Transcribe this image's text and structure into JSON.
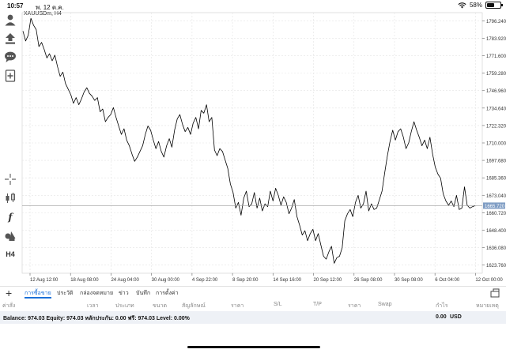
{
  "status": {
    "time": "10:57",
    "date": "พ. 12 ต.ค.",
    "battery_label": "58%",
    "battery_level": 0.58
  },
  "chart": {
    "symbol": "XAUUSDm, H4",
    "current_price": "1665.720",
    "price_ticks": [
      "1796.240",
      "1783.920",
      "1771.600",
      "1759.280",
      "1746.960",
      "1734.640",
      "1722.320",
      "1710.000",
      "1697.680",
      "1685.360",
      "1673.040",
      "1660.720",
      "1648.400",
      "1636.080",
      "1623.760"
    ],
    "date_ticks": [
      "12 Aug 12:00",
      "18 Aug 08:00",
      "24 Aug 04:00",
      "30 Aug 00:00",
      "4 Sep 22:00",
      "8 Sep 20:00",
      "14 Sep 16:00",
      "20 Sep 12:00",
      "26 Sep 08:00",
      "30 Sep 08:00",
      "6 Oct 04:00",
      "12 Oct 00:00"
    ]
  },
  "chart_data": {
    "type": "line",
    "x_ticks": [
      "12 Aug 12:00",
      "18 Aug 08:00",
      "24 Aug 04:00",
      "30 Aug 00:00",
      "4 Sep 22:00",
      "8 Sep 20:00",
      "14 Sep 16:00",
      "20 Sep 12:00",
      "26 Sep 08:00",
      "30 Sep 08:00",
      "6 Oct 04:00",
      "12 Oct 00:00"
    ],
    "ylim": [
      1618,
      1802
    ],
    "last_price": 1665.72,
    "grid": true,
    "series": [
      {
        "values": [
          1789,
          1782,
          1786,
          1798,
          1793,
          1790,
          1778,
          1781,
          1776,
          1770,
          1773,
          1768,
          1772,
          1764,
          1757,
          1760,
          1752,
          1748,
          1744,
          1738,
          1742,
          1737,
          1741,
          1746,
          1749,
          1745,
          1743,
          1740,
          1742,
          1732,
          1734,
          1725,
          1728,
          1730,
          1735,
          1728,
          1722,
          1716,
          1720,
          1712,
          1708,
          1702,
          1697,
          1700,
          1704,
          1708,
          1716,
          1722,
          1719,
          1712,
          1706,
          1711,
          1704,
          1700,
          1708,
          1713,
          1707,
          1719,
          1727,
          1730,
          1723,
          1718,
          1721,
          1716,
          1724,
          1728,
          1720,
          1733,
          1731,
          1737,
          1725,
          1728,
          1705,
          1701,
          1706,
          1704,
          1698,
          1692,
          1681,
          1675,
          1664,
          1668,
          1659,
          1671,
          1676,
          1665,
          1667,
          1675,
          1664,
          1671,
          1662,
          1667,
          1665,
          1676,
          1669,
          1678,
          1673,
          1666,
          1672,
          1668,
          1660,
          1664,
          1670,
          1658,
          1652,
          1645,
          1648,
          1641,
          1646,
          1649,
          1641,
          1646,
          1638,
          1630,
          1628,
          1633,
          1637,
          1625,
          1629,
          1630,
          1636,
          1655,
          1660,
          1663,
          1658,
          1668,
          1673,
          1664,
          1667,
          1676,
          1662,
          1667,
          1663,
          1664,
          1670,
          1676,
          1689,
          1701,
          1711,
          1719,
          1712,
          1718,
          1720,
          1714,
          1706,
          1710,
          1718,
          1725,
          1719,
          1714,
          1708,
          1712,
          1706,
          1714,
          1702,
          1693,
          1688,
          1685,
          1674,
          1669,
          1666,
          1669,
          1665,
          1673,
          1663,
          1664,
          1679,
          1666,
          1664,
          1665,
          1665.72
        ]
      }
    ]
  },
  "tabs": [
    "การซื้อขาย",
    "ประวัติ",
    "กล่องจดหมาย",
    "ข่าว",
    "บันทึก",
    "การตั้งค่า"
  ],
  "columns": [
    "ค่าสั่ง",
    "เวลา",
    "ประเภท",
    "ขนาด",
    "สัญลักษณ์",
    "ราคา",
    "S/L",
    "T/P",
    "ราคา",
    "Swap",
    "กำไร",
    "หมายเหตุ"
  ],
  "balance": {
    "text": "Balance: 974.03 Equity: 974.03 หลักประกัน: 0.00 ฟรี: 974.03 Level: 0.00%",
    "profit": "0.00",
    "currency": "USD"
  },
  "icons": [
    "account-icon",
    "trade-up-icon",
    "chat-icon",
    "new-order-icon",
    "crosshair-icon",
    "candlestick-icon",
    "function-icon",
    "objects-icon",
    "timeframe-h4",
    "plus-icon",
    "layout-toggle-icon",
    "wifi-icon",
    "battery-icon"
  ],
  "toolbar": {
    "timeframe": "H4",
    "function_glyph": "f"
  },
  "colors": {
    "accent": "#1a6fd8",
    "line": "#000000",
    "grid": "#e3e3e3",
    "price_tag": "#7f9dc4"
  }
}
